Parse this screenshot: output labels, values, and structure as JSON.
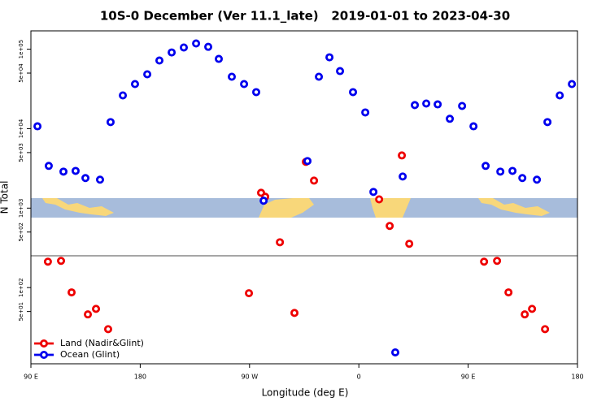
{
  "chart_data": {
    "type": "scatter",
    "title": "10S-0 December (Ver 11.1_late)   2019-01-01 to 2023-04-30",
    "x_label": "Longitude (deg E)",
    "y_label": "N Total",
    "log_y": true,
    "legend": "bottom-left",
    "xlim": [
      90,
      540
    ],
    "xticks": [
      {
        "value": 90,
        "label": "90 E"
      },
      180,
      {
        "value": 270,
        "label": "90 W"
      },
      {
        "value": 360,
        "label": "0"
      },
      {
        "value": 450,
        "label": "90 E"
      },
      {
        "value": 540,
        "label": "180"
      }
    ],
    "ylim": [
      11,
      170000
    ],
    "yticks": [
      {
        "value": 100000,
        "label": "1e+05"
      },
      {
        "value": 50000,
        "label": "5e+04"
      },
      {
        "value": 10000,
        "label": "1e+04"
      },
      {
        "value": 5000,
        "label": "5e+03"
      },
      {
        "value": 1000,
        "label": "1e+03"
      },
      {
        "value": 500,
        "label": "5e+02"
      },
      {
        "value": 100,
        "label": "1e+02"
      },
      {
        "value": 50,
        "label": "5e+01"
      }
    ],
    "series": [
      {
        "name": "Land (Nadir&Glint)",
        "color": "#ee0000",
        "x": [
          104,
          114.8,
          123.5,
          136.9,
          143.6,
          153.6,
          269.5,
          279.5,
          282.9,
          295,
          307,
          316.4,
          323.1,
          376.7,
          385.4,
          395.4,
          401.5,
          463.1,
          473.8,
          483.2,
          496.6,
          502.6,
          513.3
        ],
        "values": [
          212,
          217,
          87,
          46,
          54,
          30,
          85,
          1560,
          1390,
          372,
          48,
          3820,
          2220,
          1290,
          597,
          4600,
          356,
          212,
          217,
          87,
          46,
          54,
          30
        ]
      },
      {
        "name": "Ocean (Glint)",
        "color": "#0000ee",
        "x": [
          95.4,
          104.7,
          116.8,
          126.8,
          134.9,
          146.9,
          155.6,
          165.7,
          175.7,
          185.8,
          195.8,
          205.9,
          215.9,
          226,
          236,
          244.7,
          255.4,
          265.5,
          275.5,
          281.6,
          317.7,
          327.1,
          335.8,
          344.5,
          355.2,
          365.3,
          372,
          390,
          396.1,
          406.1,
          415.5,
          424.9,
          434.9,
          445,
          454.4,
          464.4,
          476.5,
          486.5,
          494.6,
          506.6,
          515.3,
          525.4,
          535.4
        ],
        "values": [
          10700,
          3400,
          2880,
          2940,
          2390,
          2280,
          12100,
          26200,
          36400,
          48300,
          72000,
          91000,
          105000,
          118000,
          107000,
          75400,
          45000,
          36400,
          28800,
          1240,
          3910,
          45000,
          79000,
          53000,
          28800,
          16000,
          1600,
          15.3,
          2500,
          19800,
          20700,
          20200,
          13300,
          19300,
          10700,
          3400,
          2880,
          2940,
          2390,
          2280,
          12100,
          26200,
          36400
        ]
      }
    ]
  }
}
